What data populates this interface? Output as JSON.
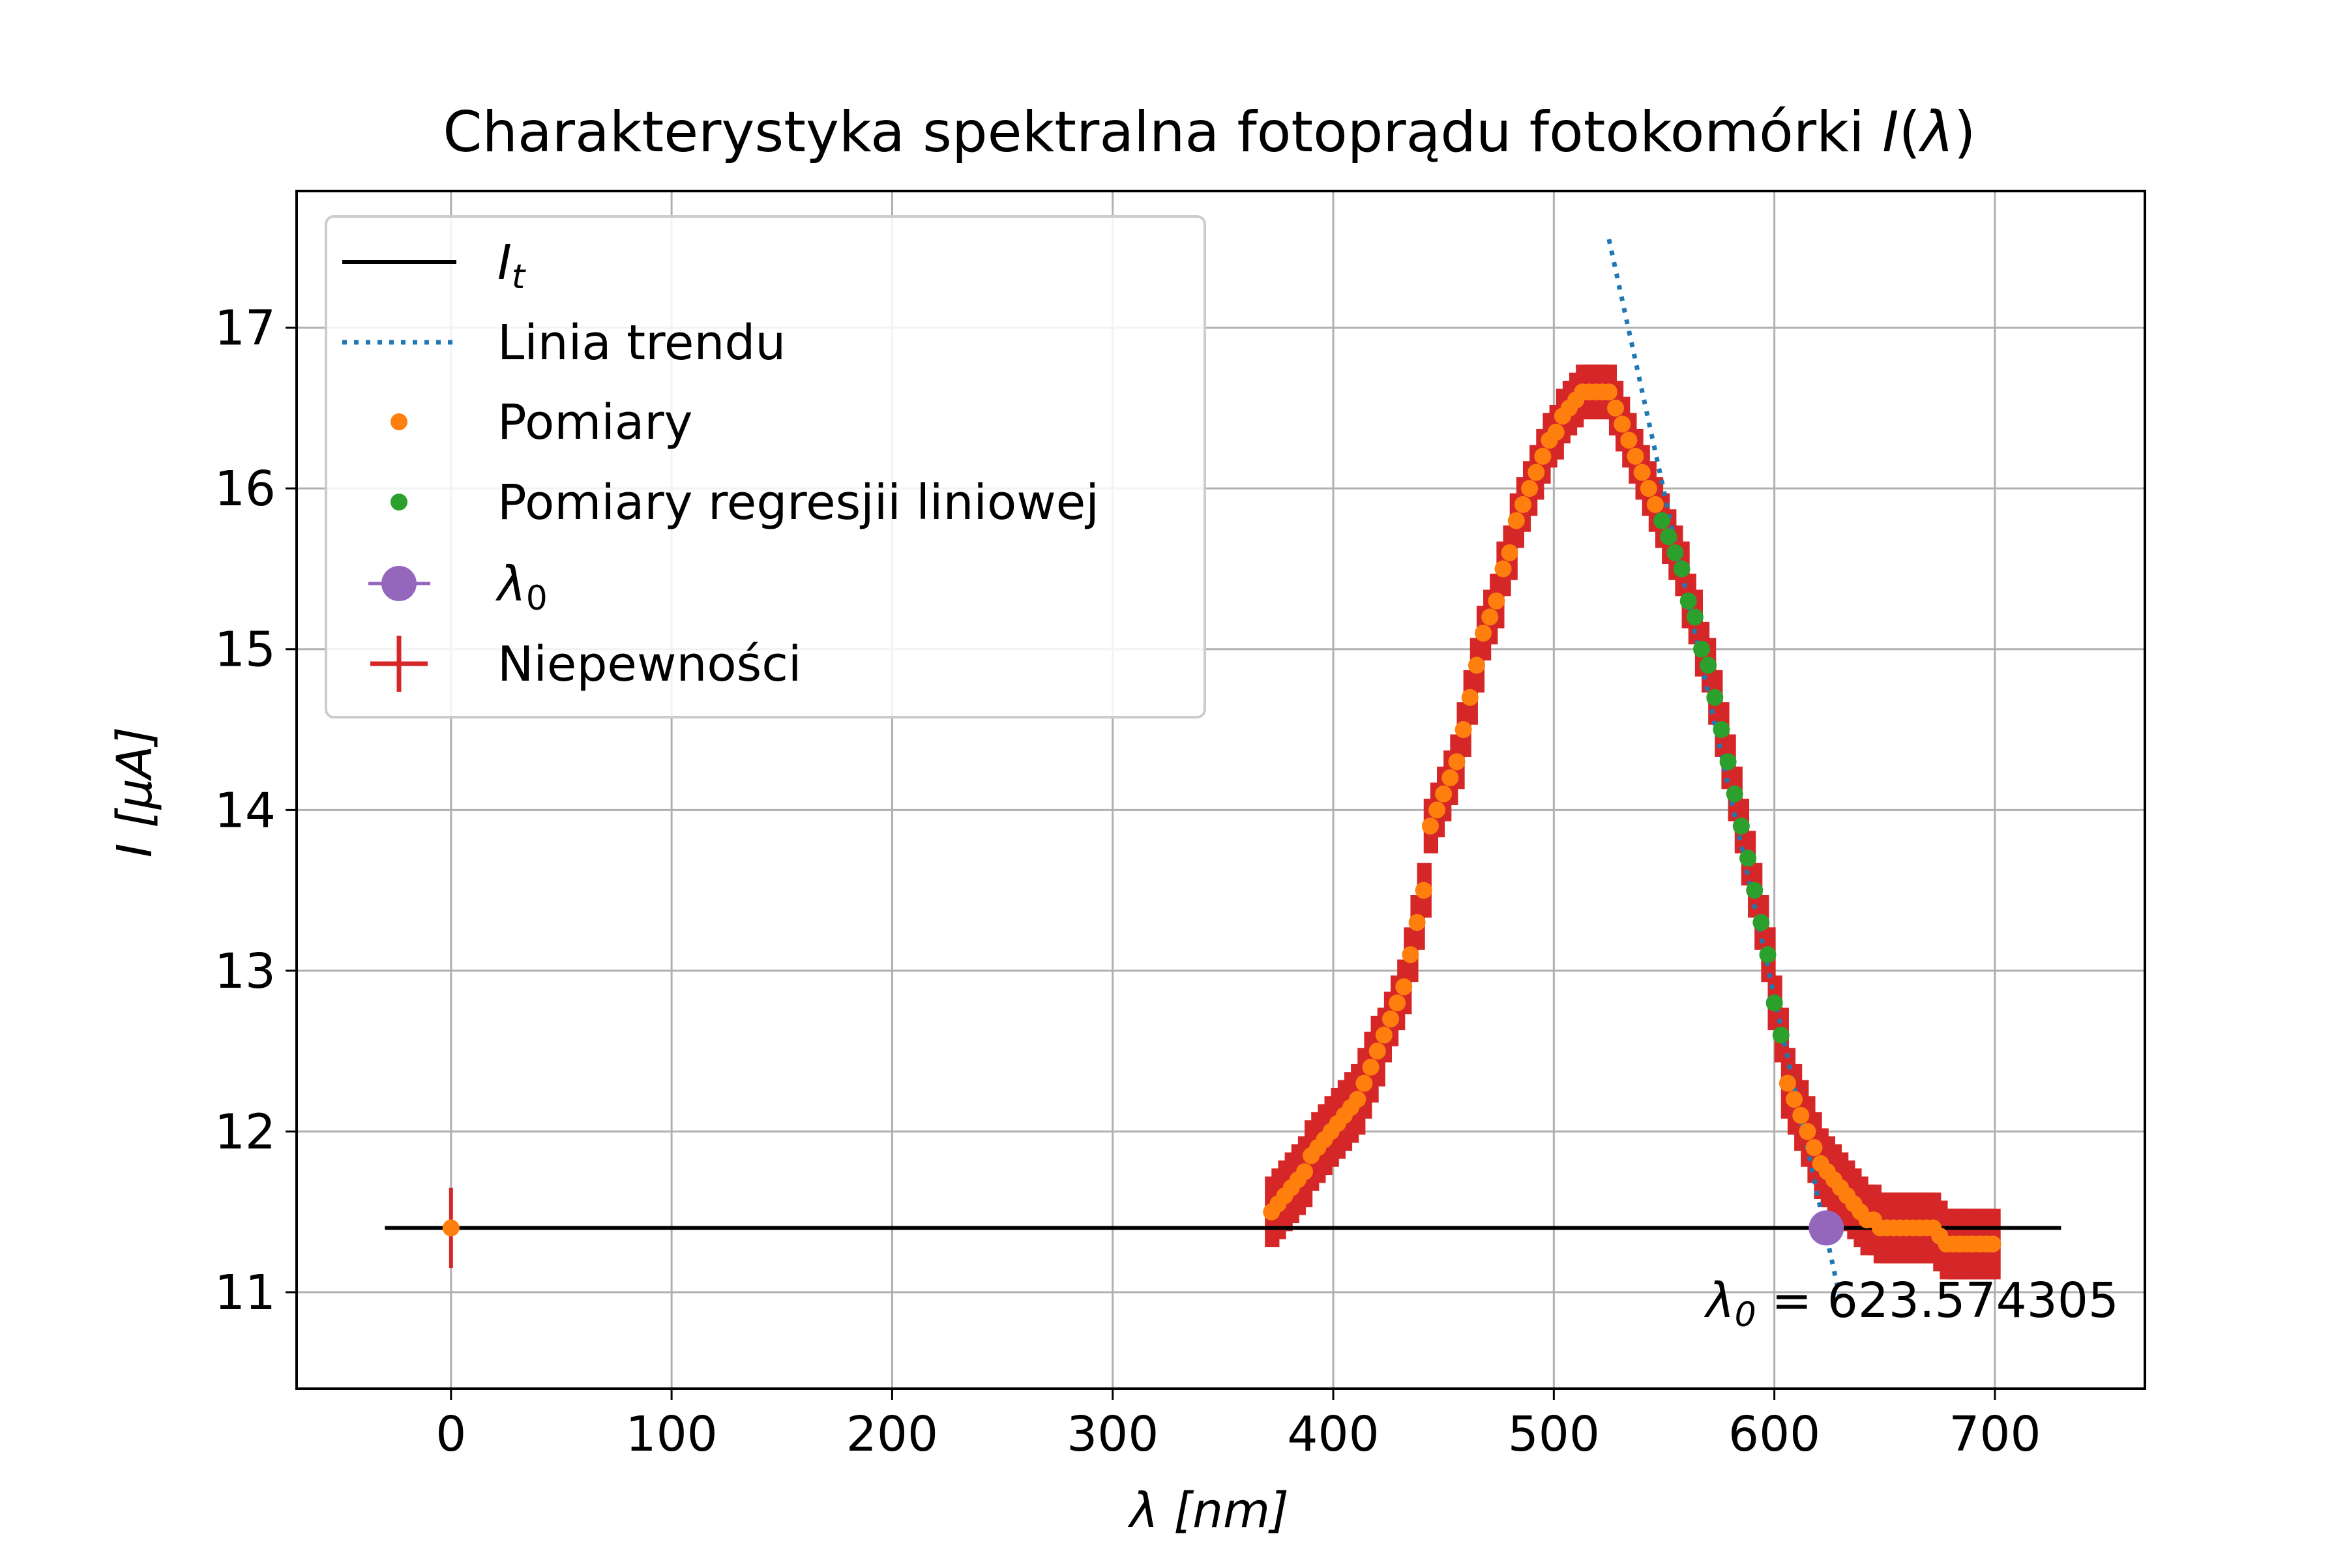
{
  "chart_data": {
    "type": "scatter",
    "title_main": "Charakterystyka spektralna fotoprądu fotokomórki ",
    "title_sym": "I",
    "title_open": "(",
    "title_lambda": "λ",
    "title_close": ")",
    "xlabel_sym": "λ",
    "xlabel_unit": " [nm]",
    "ylabel_sym": "I",
    "ylabel_unit": " [μA]",
    "xlim": [
      -70,
      768
    ],
    "ylim": [
      10.4,
      17.85
    ],
    "xticks": [
      0,
      100,
      200,
      300,
      400,
      500,
      600,
      700
    ],
    "yticks": [
      11,
      12,
      13,
      14,
      15,
      16,
      17
    ],
    "grid": true,
    "legend_position": "top-left",
    "legend": [
      {
        "key": "It",
        "label_sym": "I",
        "label_sub": "t",
        "color": "#000000",
        "marker": "line"
      },
      {
        "key": "trend",
        "label": "Linia trendu",
        "color": "#1f77b4",
        "marker": "dotted-line"
      },
      {
        "key": "pomiary",
        "label": "Pomiary",
        "color": "#ff7f0e",
        "marker": "dot"
      },
      {
        "key": "regresja",
        "label": "Pomiary regresjii liniowej",
        "color": "#2ca02c",
        "marker": "dot"
      },
      {
        "key": "lambda0",
        "label_sym": "λ",
        "label_sub": "0",
        "color": "#9467bd",
        "marker": "big-dot"
      },
      {
        "key": "niepewnosci",
        "label": "Niepewności",
        "color": "#d62728",
        "marker": "errorbar"
      }
    ],
    "annotation": {
      "sym": "λ",
      "sub": "0",
      "text": " = 623.574305"
    },
    "series": {
      "It": {
        "x": [
          -30,
          730
        ],
        "y": [
          11.4,
          11.4
        ],
        "color": "#000000"
      },
      "trend": {
        "x": [
          525,
          630
        ],
        "y": [
          17.55,
          10.95
        ],
        "color": "#1f77b4"
      },
      "pomiary_color": "#ff7f0e",
      "regresja_color": "#2ca02c",
      "lambda0": {
        "x": 623.574305,
        "y": 11.4,
        "color": "#9467bd"
      },
      "error_color": "#d62728",
      "reference_point": {
        "x": 0,
        "y": 11.4,
        "yerr": 0.25
      },
      "pomiary": [
        [
          372,
          11.5
        ],
        [
          375,
          11.55
        ],
        [
          378,
          11.6
        ],
        [
          381,
          11.65
        ],
        [
          384,
          11.7
        ],
        [
          387,
          11.75
        ],
        [
          390,
          11.85
        ],
        [
          393,
          11.9
        ],
        [
          396,
          11.95
        ],
        [
          399,
          12.0
        ],
        [
          402,
          12.05
        ],
        [
          405,
          12.1
        ],
        [
          408,
          12.15
        ],
        [
          411,
          12.2
        ],
        [
          414,
          12.3
        ],
        [
          417,
          12.4
        ],
        [
          420,
          12.5
        ],
        [
          423,
          12.6
        ],
        [
          426,
          12.7
        ],
        [
          429,
          12.8
        ],
        [
          432,
          12.9
        ],
        [
          435,
          13.1
        ],
        [
          438,
          13.3
        ],
        [
          441,
          13.5
        ],
        [
          444,
          13.9
        ],
        [
          447,
          14.0
        ],
        [
          450,
          14.1
        ],
        [
          453,
          14.2
        ],
        [
          456,
          14.3
        ],
        [
          459,
          14.5
        ],
        [
          462,
          14.7
        ],
        [
          465,
          14.9
        ],
        [
          468,
          15.1
        ],
        [
          471,
          15.2
        ],
        [
          474,
          15.3
        ],
        [
          477,
          15.5
        ],
        [
          480,
          15.6
        ],
        [
          483,
          15.8
        ],
        [
          486,
          15.9
        ],
        [
          489,
          16.0
        ],
        [
          492,
          16.1
        ],
        [
          495,
          16.2
        ],
        [
          498,
          16.3
        ],
        [
          501,
          16.35
        ],
        [
          504,
          16.45
        ],
        [
          507,
          16.5
        ],
        [
          510,
          16.55
        ],
        [
          513,
          16.6
        ],
        [
          516,
          16.6
        ],
        [
          519,
          16.6
        ],
        [
          522,
          16.6
        ],
        [
          525,
          16.6
        ],
        [
          528,
          16.5
        ],
        [
          531,
          16.4
        ],
        [
          534,
          16.3
        ],
        [
          537,
          16.2
        ],
        [
          540,
          16.1
        ],
        [
          543,
          16.0
        ],
        [
          546,
          15.9
        ],
        [
          606,
          12.3
        ],
        [
          609,
          12.2
        ],
        [
          612,
          12.1
        ],
        [
          615,
          12.0
        ],
        [
          618,
          11.9
        ],
        [
          621,
          11.8
        ],
        [
          624,
          11.75
        ],
        [
          627,
          11.7
        ],
        [
          630,
          11.65
        ],
        [
          633,
          11.6
        ],
        [
          636,
          11.55
        ],
        [
          639,
          11.5
        ],
        [
          642,
          11.45
        ],
        [
          645,
          11.45
        ],
        [
          648,
          11.4
        ],
        [
          651,
          11.4
        ],
        [
          654,
          11.4
        ],
        [
          657,
          11.4
        ],
        [
          660,
          11.4
        ],
        [
          663,
          11.4
        ],
        [
          666,
          11.4
        ],
        [
          669,
          11.4
        ],
        [
          672,
          11.4
        ],
        [
          675,
          11.35
        ],
        [
          678,
          11.3
        ],
        [
          681,
          11.3
        ],
        [
          684,
          11.3
        ],
        [
          687,
          11.3
        ],
        [
          690,
          11.3
        ],
        [
          693,
          11.3
        ],
        [
          696,
          11.3
        ],
        [
          699,
          11.3
        ]
      ],
      "regresja": [
        [
          549,
          15.8
        ],
        [
          552,
          15.7
        ],
        [
          555,
          15.6
        ],
        [
          558,
          15.5
        ],
        [
          561,
          15.3
        ],
        [
          564,
          15.2
        ],
        [
          567,
          15.0
        ],
        [
          570,
          14.9
        ],
        [
          573,
          14.7
        ],
        [
          576,
          14.5
        ],
        [
          579,
          14.3
        ],
        [
          582,
          14.1
        ],
        [
          585,
          13.9
        ],
        [
          588,
          13.7
        ],
        [
          591,
          13.5
        ],
        [
          594,
          13.3
        ],
        [
          597,
          13.1
        ],
        [
          600,
          12.8
        ],
        [
          603,
          12.6
        ]
      ]
    }
  }
}
